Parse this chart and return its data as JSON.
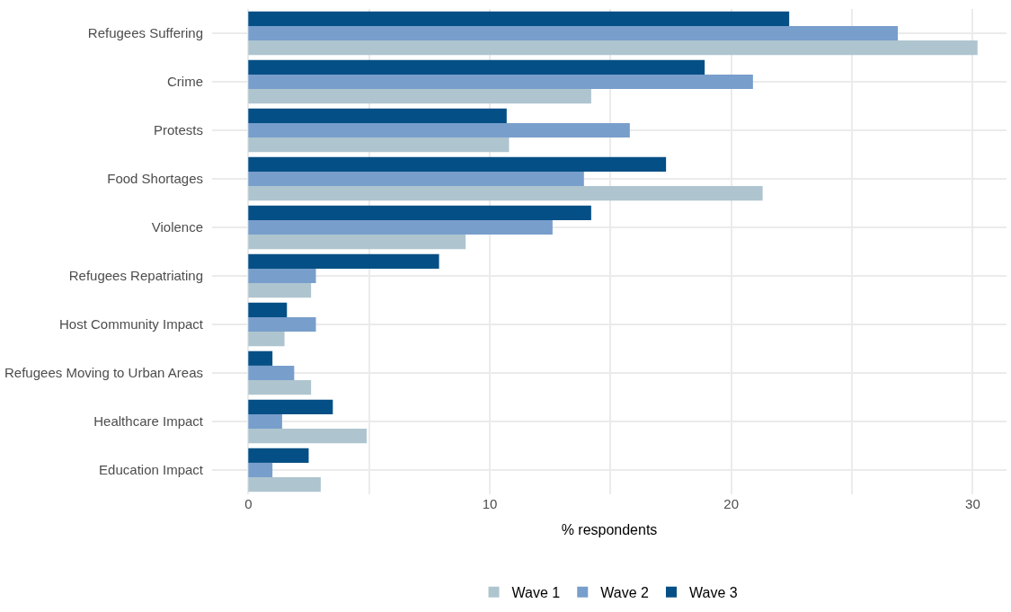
{
  "chart_data": {
    "type": "bar",
    "orientation": "horizontal",
    "xlabel": "% respondents",
    "categories": [
      "Refugees Suffering",
      "Crime",
      "Protests",
      "Food Shortages",
      "Violence",
      "Refugees Repatriating",
      "Host Community Impact",
      "Refugees Moving to Urban Areas",
      "Healthcare Impact",
      "Education Impact"
    ],
    "series": [
      {
        "name": "Wave 1",
        "color": "#aec5cf",
        "values": [
          30.2,
          14.2,
          10.8,
          21.3,
          9.0,
          2.6,
          1.5,
          2.6,
          4.9,
          3.0
        ]
      },
      {
        "name": "Wave 2",
        "color": "#789ecb",
        "values": [
          26.9,
          20.9,
          15.8,
          13.9,
          12.6,
          2.8,
          2.8,
          1.9,
          1.4,
          1.0
        ]
      },
      {
        "name": "Wave 3",
        "color": "#044f85",
        "values": [
          22.4,
          18.9,
          10.7,
          17.3,
          14.2,
          7.9,
          1.6,
          1.0,
          3.5,
          2.5
        ]
      }
    ],
    "xlim": [
      -1.5,
      31.4
    ],
    "xticks": [
      0,
      {
        "value": 5,
        "label": null
      },
      10,
      {
        "value": 15,
        "label": null
      },
      20,
      {
        "value": 25,
        "label": null
      },
      30
    ],
    "grid": true,
    "legend": "bottom"
  }
}
